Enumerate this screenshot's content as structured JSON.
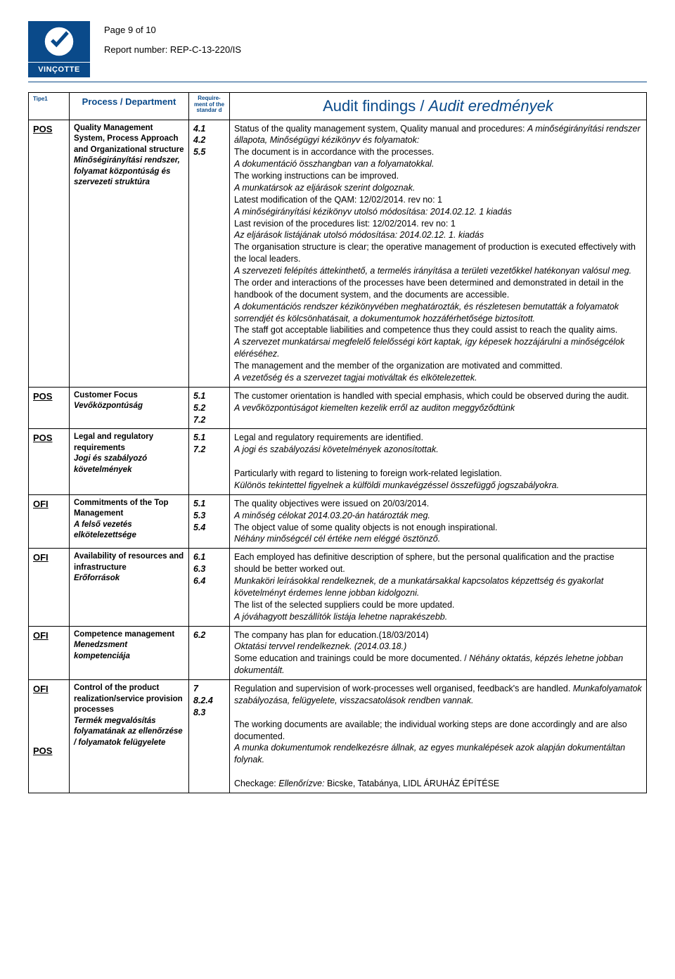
{
  "header": {
    "logo_text": "VINÇOTTE",
    "page_label": "Page 9 of 10",
    "report_label": "Report number: REP-C-13-220/IS"
  },
  "table": {
    "headers": {
      "type": "Tipe1",
      "process": "Process / Department",
      "requirement": "Require-\nment of the standar\nd",
      "findings_plain": "Audit findings",
      "findings_sep": " / ",
      "findings_italic": "Audit eredmények"
    },
    "rows": [
      {
        "type": "POS",
        "process_en": "Quality Management System, Process Approach and Organizational structure",
        "process_hu": "Minőségirányítási rendszer, folyamat központúság és szervezeti struktúra",
        "req": "4.1\n4.2\n5.5",
        "findings": "Status of the quality management system, Quality manual and procedures: <span class='it'>A minőségirányítási rendszer állapota, Minőségügyi kézikönyv és folyamatok:</span><br>The document is in accordance with the processes.<br><span class='it'>A dokumentáció összhangban van a folyamatokkal.</span><br>The working instructions can be improved.<br><span class='it'>A munkatársok az eljárások szerint dolgoznak.</span><br>Latest modification of the QAM: 12/02/2014. rev no: 1<br><span class='it'>A minőségirányítási kézikönyv utolsó módosítása: 2014.02.12. 1 kiadás</span><br>Last revision of the procedures list: 12/02/2014. rev no: 1<br><span class='it'>Az eljárások listájának utolsó módosítása: 2014.02.12. 1. kiadás</span><br>The organisation structure is clear; the operative management of production is executed effectively with the local leaders.<br><span class='it'>A szervezeti felépítés áttekinthető, a termelés irányítása a területi vezetőkkel hatékonyan valósul meg.</span><br>The order and interactions of the processes have been determined and demonstrated in detail in the handbook of the document system, and the documents are accessible.<br><span class='it'>A dokumentációs rendszer kézikönyvében meghatározták, és részletesen bemutatták a folyamatok sorrendjét és kölcsönhatásait, a dokumentumok hozzáférhetősége biztosított.</span><br>The staff got acceptable liabilities and competence thus they could assist to reach the quality aims.<br><span class='it'>A szervezet munkatársai megfelelő felelősségi kört kaptak, így képesek hozzájárulni a minőségcélok eléréséhez.</span><br>The management and the member of the organization are motivated and committed.<br><span class='it'>A vezetőség és a szervezet tagjai motiváltak és elkötelezettek.</span>"
      },
      {
        "type": "POS",
        "process_en": "Customer Focus",
        "process_hu": "Vevőközpontúság",
        "req": "5.1\n5.2\n7.2",
        "findings": "The customer orientation is handled with special emphasis, which could be observed during the audit.<br><span class='it'>A vevőközpontúságot kiemelten kezelik erről az auditon meggyőződtünk</span>"
      },
      {
        "type": "POS",
        "process_en": "Legal and regulatory requirements",
        "process_hu": "Jogi és szabályozó követelmények",
        "req": "5.1\n7.2",
        "findings": "Legal and regulatory requirements are identified.<br><span class='it'>A jogi és szabályozási követelmények azonosítottak.</span><br><br>Particularly with regard to listening to foreign work-related legislation.<br><span class='it'>Különös tekintettel figyelnek a külföldi munkavégzéssel összefüggő jogszabályokra.</span>"
      },
      {
        "type": "OFI",
        "process_en": "Commitments of the Top Management",
        "process_hu": "A felső vezetés elkötelezettsége",
        "req": "5.1\n5.3\n5.4",
        "findings": "The quality objectives were issued on 20/03/2014.<br><span class='it'>A minőség célokat 2014.03.20-án határozták meg.</span><br>The object value of some quality objects is not enough inspirational.<br><span class='it'>Néhány minőségcél cél értéke nem eléggé ösztönző.</span>"
      },
      {
        "type": "OFI",
        "process_en": "Availability of resources and infrastructure",
        "process_hu": "Erőforrások",
        "req": "6.1\n6.3\n6.4",
        "findings": "Each employed has definitive description of sphere, but the personal qualification and the practise should be better worked out.<br><span class='it'>Munkaköri leírásokkal rendelkeznek, de a munkatársakkal kapcsolatos képzettség és gyakorlat követelményt érdemes lenne jobban kidolgozni.</span><br>The list of the selected suppliers could be more updated.<br><span class='it'>A jóváhagyott beszállítók listája lehetne naprakészebb.</span>"
      },
      {
        "type": "OFI",
        "process_en": "Competence management",
        "process_hu": "Menedzsment kompetenciája",
        "req": "6.2",
        "findings": "The company has plan for education.(18/03/2014)<br><span class='it'>Oktatási tervvel rendelkeznek. (2014.03.18.)</span><br>Some education and trainings could be more documented. / <span class='it'>Néhány oktatás, képzés lehetne jobban dokumentált.</span>"
      },
      {
        "type": "OFI\n\n\n\n\nPOS",
        "process_en": "Control of the product realization/service provision processes",
        "process_hu": "Termék megvalósítás folyamatának az ellenőrzése / folyamatok felügyelete",
        "req": "7\n8.2.4\n8.3",
        "findings": "Regulation and supervision of work-processes well organised, feedback's are handled. <span class='it'>Munkafolyamatok szabályozása, felügyelete, visszacsatolások rendben vannak.</span><br><br>The working documents are available; the individual working steps are done accordingly and are also documented.<br><span class='it'>A munka dokumentumok rendelkezésre állnak, az egyes munkalépések azok alapján dokumentáltan folynak.</span><br><br>Checkage: <span class='it'>Ellenőrízve:</span> Bicske, Tatabánya,  LIDL ÁRUHÁZ ÉPÍTÉSE"
      }
    ]
  }
}
